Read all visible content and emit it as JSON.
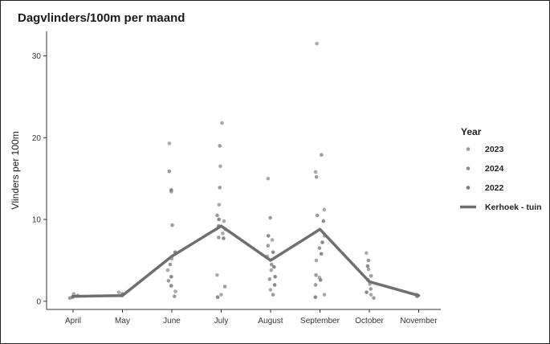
{
  "chart_data": {
    "type": "scatter",
    "title": "Dagvlinders/100m per maand",
    "xlabel": "",
    "ylabel": "Vlinders per 100m",
    "categories": [
      "April",
      "May",
      "June",
      "July",
      "August",
      "September",
      "October",
      "November"
    ],
    "ylim": [
      -1,
      33
    ],
    "yticks": [
      0,
      10,
      20,
      30
    ],
    "grid": false,
    "legend_position": "right",
    "legend_title": "Year",
    "colors": {
      "2023": "#9a9a9a",
      "2024": "#8a8a8a",
      "2022": "#777777",
      "line": "#6f6f6f"
    },
    "series": [
      {
        "name": "2023",
        "points": [
          {
            "x": "April",
            "y": 0.6
          },
          {
            "x": "April",
            "y": 0.9
          },
          {
            "x": "May",
            "y": 1.1
          },
          {
            "x": "June",
            "y": 19.3
          },
          {
            "x": "June",
            "y": 13.4
          },
          {
            "x": "June",
            "y": 5.2
          },
          {
            "x": "June",
            "y": 3.8
          },
          {
            "x": "June",
            "y": 1.2
          },
          {
            "x": "July",
            "y": 21.8
          },
          {
            "x": "July",
            "y": 16.5
          },
          {
            "x": "July",
            "y": 11.8
          },
          {
            "x": "July",
            "y": 9.8
          },
          {
            "x": "July",
            "y": 8.3
          },
          {
            "x": "July",
            "y": 3.2
          },
          {
            "x": "July",
            "y": 0.8
          },
          {
            "x": "August",
            "y": 15.0
          },
          {
            "x": "August",
            "y": 7.5
          },
          {
            "x": "August",
            "y": 5.5
          },
          {
            "x": "August",
            "y": 3.8
          },
          {
            "x": "August",
            "y": 1.4
          },
          {
            "x": "September",
            "y": 31.5
          },
          {
            "x": "September",
            "y": 15.8
          },
          {
            "x": "September",
            "y": 11.2
          },
          {
            "x": "September",
            "y": 8.0
          },
          {
            "x": "September",
            "y": 5.0
          },
          {
            "x": "September",
            "y": 2.9
          },
          {
            "x": "September",
            "y": 0.8
          },
          {
            "x": "October",
            "y": 5.9
          },
          {
            "x": "October",
            "y": 3.9
          },
          {
            "x": "October",
            "y": 2.1
          },
          {
            "x": "October",
            "y": 0.8
          },
          {
            "x": "November",
            "y": 0.8
          }
        ]
      },
      {
        "name": "2024",
        "points": [
          {
            "x": "April",
            "y": 0.4
          },
          {
            "x": "April",
            "y": 0.7
          },
          {
            "x": "May",
            "y": 0.7
          },
          {
            "x": "June",
            "y": 15.9
          },
          {
            "x": "June",
            "y": 9.3
          },
          {
            "x": "June",
            "y": 4.5
          },
          {
            "x": "June",
            "y": 2.5
          },
          {
            "x": "June",
            "y": 0.6
          },
          {
            "x": "July",
            "y": 19.0
          },
          {
            "x": "July",
            "y": 13.9
          },
          {
            "x": "July",
            "y": 10.5
          },
          {
            "x": "July",
            "y": 8.8
          },
          {
            "x": "July",
            "y": 7.8
          },
          {
            "x": "July",
            "y": 1.8
          },
          {
            "x": "August",
            "y": 10.2
          },
          {
            "x": "August",
            "y": 6.8
          },
          {
            "x": "August",
            "y": 4.5
          },
          {
            "x": "August",
            "y": 2.7
          },
          {
            "x": "August",
            "y": 0.8
          },
          {
            "x": "September",
            "y": 17.9
          },
          {
            "x": "September",
            "y": 15.2
          },
          {
            "x": "September",
            "y": 10.5
          },
          {
            "x": "September",
            "y": 6.5
          },
          {
            "x": "September",
            "y": 3.2
          },
          {
            "x": "September",
            "y": 2.0
          },
          {
            "x": "October",
            "y": 5.0
          },
          {
            "x": "October",
            "y": 3.1
          },
          {
            "x": "October",
            "y": 1.5
          },
          {
            "x": "October",
            "y": 0.4
          },
          {
            "x": "November",
            "y": 0.6
          }
        ]
      },
      {
        "name": "2022",
        "points": [
          {
            "x": "April",
            "y": 0.5
          },
          {
            "x": "May",
            "y": 0.9
          },
          {
            "x": "June",
            "y": 13.6
          },
          {
            "x": "June",
            "y": 6.0
          },
          {
            "x": "June",
            "y": 3.0
          },
          {
            "x": "June",
            "y": 1.9
          },
          {
            "x": "July",
            "y": 10.0
          },
          {
            "x": "July",
            "y": 9.2
          },
          {
            "x": "July",
            "y": 7.7
          },
          {
            "x": "July",
            "y": 0.5
          },
          {
            "x": "August",
            "y": 8.0
          },
          {
            "x": "August",
            "y": 6.0
          },
          {
            "x": "August",
            "y": 4.2
          },
          {
            "x": "August",
            "y": 3.0
          },
          {
            "x": "August",
            "y": 2.0
          },
          {
            "x": "September",
            "y": 9.8
          },
          {
            "x": "September",
            "y": 7.2
          },
          {
            "x": "September",
            "y": 5.8
          },
          {
            "x": "September",
            "y": 2.6
          },
          {
            "x": "September",
            "y": 0.5
          },
          {
            "x": "October",
            "y": 4.3
          },
          {
            "x": "October",
            "y": 2.6
          },
          {
            "x": "October",
            "y": 1.1
          },
          {
            "x": "November",
            "y": 0.7
          }
        ]
      }
    ],
    "line": {
      "name": "Kerhoek - tuin",
      "values": [
        0.6,
        0.7,
        5.5,
        9.2,
        5.0,
        8.8,
        2.4,
        0.7
      ]
    }
  }
}
